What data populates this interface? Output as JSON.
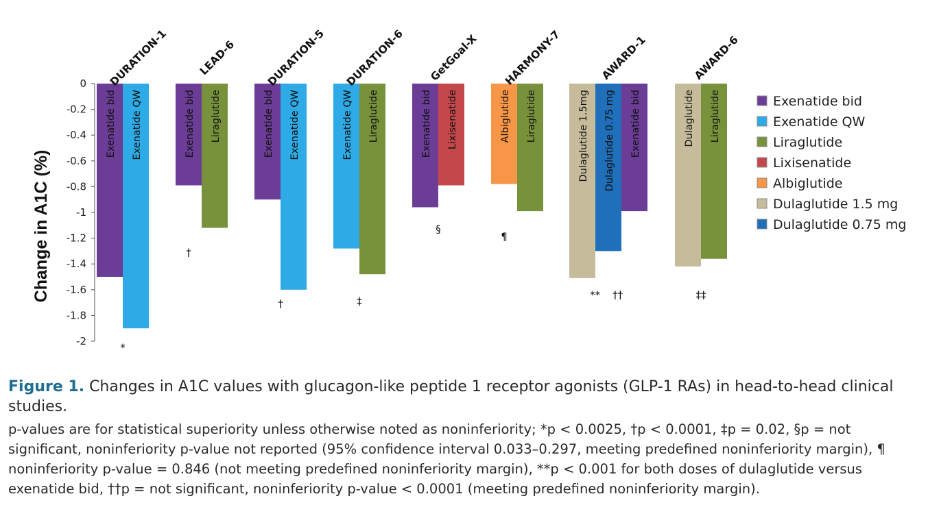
{
  "chart_data": {
    "type": "bar",
    "ylabel": "Change in A1C  (%)",
    "ylim": [
      -2,
      0
    ],
    "yticks": [
      "0",
      "-0.2",
      "-0.4",
      "-0.6",
      "-0.8",
      "-1",
      "-1.2",
      "-1.4",
      "-1.6",
      "-1.8",
      "-2"
    ],
    "legend_position": "right",
    "colors": {
      "Exenatide bid": "#6b3d96",
      "Exenatide QW": "#2eaae6",
      "Liraglutide": "#77923b",
      "Lixisenatide": "#c4474c",
      "Albiglutide": "#f79646",
      "Dulaglutide 1.5 mg": "#c6bc9b",
      "Dulaglutide 0.75 mg": "#1f6fba"
    },
    "legend": [
      "Exenatide bid",
      "Exenatide QW",
      "Liraglutide",
      "Lixisenatide",
      "Albiglutide",
      "Dulaglutide 1.5 mg",
      "Dulaglutide 0.75 mg"
    ],
    "studies": [
      {
        "name": "DURATION-1",
        "bars": [
          {
            "label": "Exenatide bid",
            "series": "Exenatide bid",
            "value": -1.5
          },
          {
            "label": "Exenatide QW",
            "series": "Exenatide QW",
            "value": -1.9
          }
        ],
        "annotations": [
          {
            "text": "*",
            "value": -2.05,
            "slot": 0.5
          }
        ]
      },
      {
        "name": "LEAD-6",
        "bars": [
          {
            "label": "Exenatide bid",
            "series": "Exenatide bid",
            "value": -0.79
          },
          {
            "label": "Liraglutide",
            "series": "Liraglutide",
            "value": -1.12
          }
        ],
        "annotations": [
          {
            "text": "†",
            "value": -1.31,
            "slot": 0.25
          }
        ]
      },
      {
        "name": "DURATION-5",
        "bars": [
          {
            "label": "Exenatide bid",
            "series": "Exenatide bid",
            "value": -0.9
          },
          {
            "label": "Exenatide QW",
            "series": "Exenatide QW",
            "value": -1.6
          }
        ],
        "annotations": [
          {
            "text": "†",
            "value": -1.71,
            "slot": 0.5
          }
        ]
      },
      {
        "name": "DURATION-6",
        "bars": [
          {
            "label": "Exenatide QW",
            "series": "Exenatide QW",
            "value": -1.28
          },
          {
            "label": "Liraglutide",
            "series": "Liraglutide",
            "value": -1.48
          }
        ],
        "annotations": [
          {
            "text": "‡",
            "value": -1.69,
            "slot": 0.5
          }
        ]
      },
      {
        "name": "GetGoal-X",
        "bars": [
          {
            "label": "Exenatide bid",
            "series": "Exenatide bid",
            "value": -0.96
          },
          {
            "label": "Lixisenatide",
            "series": "Lixisenatide",
            "value": -0.79
          }
        ],
        "annotations": [
          {
            "text": "§",
            "value": -1.13,
            "slot": 0.5
          }
        ]
      },
      {
        "name": "HARMONY-7",
        "bars": [
          {
            "label": "Albiglutide",
            "series": "Albiglutide",
            "value": -0.78
          },
          {
            "label": "Liraglutide",
            "series": "Liraglutide",
            "value": -0.99
          }
        ],
        "annotations": [
          {
            "text": "¶",
            "value": -1.19,
            "slot": 0.25
          }
        ]
      },
      {
        "name": "AWARD-1",
        "bars": [
          {
            "label": "Dulaglutide 1.5mg",
            "series": "Dulaglutide 1.5 mg",
            "value": -1.51
          },
          {
            "label": "Dulaglutide 0.75 mg",
            "series": "Dulaglutide 0.75 mg",
            "value": -1.3
          },
          {
            "label": "Exenatide bid",
            "series": "Exenatide bid",
            "value": -0.99
          }
        ],
        "annotations": [
          {
            "text": "**",
            "value": -1.64,
            "slot": 0.33
          },
          {
            "text": "††",
            "value": -1.64,
            "slot": 0.62
          }
        ]
      },
      {
        "name": "AWARD-6",
        "bars": [
          {
            "label": "Dulaglutide",
            "series": "Dulaglutide 1.5 mg",
            "value": -1.42
          },
          {
            "label": "Liraglutide",
            "series": "Liraglutide",
            "value": -1.36
          }
        ],
        "annotations": [
          {
            "text": "‡‡",
            "value": -1.64,
            "slot": 0.5
          }
        ]
      }
    ]
  },
  "caption": {
    "figure_label": "Figure 1.",
    "title": " Changes in A1C values with glucagon-like peptide 1 receptor agonists (GLP-1 RAs) in head-to-head clinical studies.",
    "note": "p-values are for statistical superiority unless otherwise noted as noninferiority; *p < 0.0025, †p < 0.0001, ‡p = 0.02, §p = not significant, noninferiority p-value not reported (95% confidence interval 0.033–0.297, meeting predefined noninferiority margin), ¶ noninferiority p-value = 0.846 (not meeting predefined noninferiority margin), **p < 0.001 for both doses of dulaglutide versus exenatide bid, ††p = not significant, noninferiority p-value < 0.0001 (meeting predefined noninferiority margin)."
  }
}
